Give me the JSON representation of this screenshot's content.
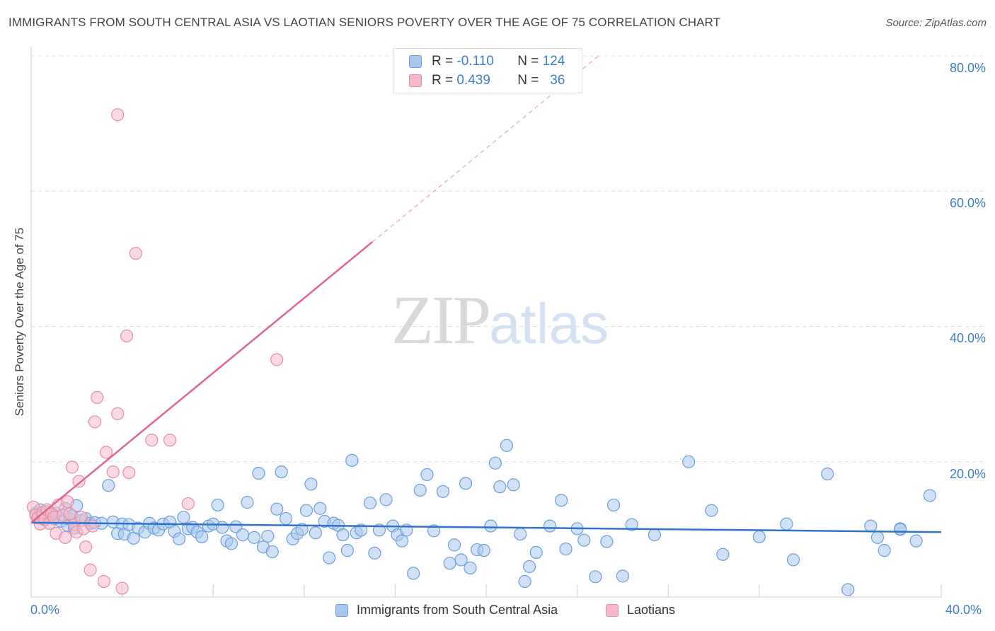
{
  "title": "IMMIGRANTS FROM SOUTH CENTRAL ASIA VS LAOTIAN SENIORS POVERTY OVER THE AGE OF 75 CORRELATION CHART",
  "source": "Source: ZipAtlas.com",
  "watermark": {
    "zip": "ZIP",
    "atlas": "atlas"
  },
  "legend": {
    "rows": [
      {
        "r_label": "R =",
        "r_value": "-0.110",
        "n_label": "N =",
        "n_value": "124",
        "color": "#a9c8ee"
      },
      {
        "r_label": "R =",
        "r_value": "0.439",
        "n_label": "N =",
        "n_value": "36",
        "color": "#f6b9ca"
      }
    ]
  },
  "colors": {
    "blue_fill": "#a9c8ee",
    "blue_stroke": "#6b9fdb",
    "blue_line": "#2f73cf",
    "pink_fill": "#f6b9ca",
    "pink_stroke": "#e98aa6",
    "pink_line": "#e0648c",
    "grid": "#dddddd",
    "tick_text": "#3d7ccc"
  },
  "chart_data": {
    "type": "scatter",
    "title": "IMMIGRANTS FROM SOUTH CENTRAL ASIA VS LAOTIAN SENIORS POVERTY OVER THE AGE OF 75 CORRELATION CHART",
    "xlabel": "",
    "ylabel": "Seniors Poverty Over the Age of 75",
    "xlim": [
      0,
      40
    ],
    "ylim": [
      0,
      80
    ],
    "x_ticks": [
      "0.0%",
      "40.0%"
    ],
    "y_ticks": [
      "20.0%",
      "40.0%",
      "60.0%",
      "80.0%"
    ],
    "grid": true,
    "legend_position": "top-center",
    "series": [
      {
        "name": "Immigrants from South Central Asia",
        "color": "#a9c8ee",
        "trend": {
          "x": [
            0,
            40
          ],
          "y": [
            11.0,
            9.6
          ],
          "r": -0.11,
          "n": 124
        },
        "points": [
          [
            0.2,
            12.4
          ],
          [
            0.3,
            11.8
          ],
          [
            0.4,
            12.9
          ],
          [
            0.5,
            12.1
          ],
          [
            0.6,
            11.4
          ],
          [
            0.7,
            12.6
          ],
          [
            0.8,
            11.9
          ],
          [
            0.9,
            12.2
          ],
          [
            1.0,
            11.6
          ],
          [
            1.1,
            12.4
          ],
          [
            1.3,
            11.2
          ],
          [
            1.5,
            13.1
          ],
          [
            1.6,
            10.6
          ],
          [
            1.7,
            11.5
          ],
          [
            1.8,
            12.0
          ],
          [
            1.9,
            10.2
          ],
          [
            2.0,
            13.5
          ],
          [
            2.2,
            11.3
          ],
          [
            2.4,
            11.6
          ],
          [
            2.6,
            10.9
          ],
          [
            2.8,
            11.0
          ],
          [
            3.1,
            10.9
          ],
          [
            3.4,
            16.5
          ],
          [
            3.6,
            11.1
          ],
          [
            3.8,
            9.4
          ],
          [
            4.0,
            10.8
          ],
          [
            4.1,
            9.3
          ],
          [
            4.3,
            10.7
          ],
          [
            4.5,
            8.7
          ],
          [
            4.7,
            10.2
          ],
          [
            5.0,
            9.6
          ],
          [
            5.2,
            10.9
          ],
          [
            5.4,
            10.2
          ],
          [
            5.6,
            9.9
          ],
          [
            5.8,
            10.8
          ],
          [
            6.1,
            11.1
          ],
          [
            6.3,
            9.7
          ],
          [
            6.5,
            8.6
          ],
          [
            6.7,
            11.8
          ],
          [
            6.9,
            10.1
          ],
          [
            7.1,
            10.3
          ],
          [
            7.3,
            9.6
          ],
          [
            7.5,
            8.9
          ],
          [
            7.8,
            10.5
          ],
          [
            8.0,
            10.8
          ],
          [
            8.2,
            13.6
          ],
          [
            8.4,
            10.3
          ],
          [
            8.6,
            8.3
          ],
          [
            8.8,
            7.9
          ],
          [
            9.0,
            10.4
          ],
          [
            9.3,
            9.2
          ],
          [
            9.5,
            14.0
          ],
          [
            9.8,
            8.8
          ],
          [
            10.0,
            18.3
          ],
          [
            10.2,
            7.4
          ],
          [
            10.4,
            9.0
          ],
          [
            10.6,
            6.7
          ],
          [
            10.8,
            13.0
          ],
          [
            11.0,
            18.5
          ],
          [
            11.2,
            11.6
          ],
          [
            11.5,
            8.6
          ],
          [
            11.7,
            9.4
          ],
          [
            11.9,
            10.0
          ],
          [
            12.1,
            12.8
          ],
          [
            12.3,
            16.7
          ],
          [
            12.5,
            9.5
          ],
          [
            12.7,
            13.1
          ],
          [
            12.9,
            11.2
          ],
          [
            13.1,
            5.8
          ],
          [
            13.3,
            10.9
          ],
          [
            13.5,
            10.6
          ],
          [
            13.7,
            9.2
          ],
          [
            13.9,
            6.9
          ],
          [
            14.1,
            20.2
          ],
          [
            14.3,
            9.5
          ],
          [
            14.5,
            9.9
          ],
          [
            14.9,
            13.9
          ],
          [
            15.1,
            6.5
          ],
          [
            15.3,
            9.9
          ],
          [
            15.6,
            14.4
          ],
          [
            15.9,
            10.5
          ],
          [
            16.1,
            9.2
          ],
          [
            16.3,
            8.3
          ],
          [
            16.5,
            9.9
          ],
          [
            16.8,
            3.5
          ],
          [
            17.1,
            15.8
          ],
          [
            17.4,
            18.1
          ],
          [
            17.7,
            9.8
          ],
          [
            18.1,
            15.6
          ],
          [
            18.4,
            5.0
          ],
          [
            18.6,
            7.7
          ],
          [
            18.9,
            5.5
          ],
          [
            19.1,
            16.8
          ],
          [
            19.3,
            4.3
          ],
          [
            19.6,
            7.0
          ],
          [
            19.9,
            6.9
          ],
          [
            20.2,
            10.5
          ],
          [
            20.4,
            19.8
          ],
          [
            20.6,
            16.3
          ],
          [
            20.9,
            22.4
          ],
          [
            21.2,
            16.6
          ],
          [
            21.5,
            9.3
          ],
          [
            21.7,
            2.3
          ],
          [
            21.9,
            4.5
          ],
          [
            22.2,
            6.6
          ],
          [
            22.8,
            10.5
          ],
          [
            23.3,
            14.3
          ],
          [
            23.5,
            7.1
          ],
          [
            24.0,
            10.1
          ],
          [
            24.3,
            8.4
          ],
          [
            24.8,
            3.0
          ],
          [
            25.3,
            8.2
          ],
          [
            25.6,
            13.6
          ],
          [
            26.0,
            3.1
          ],
          [
            26.4,
            10.7
          ],
          [
            27.4,
            9.2
          ],
          [
            28.9,
            20.0
          ],
          [
            29.9,
            12.8
          ],
          [
            30.4,
            6.3
          ],
          [
            32.0,
            8.9
          ],
          [
            33.2,
            10.8
          ],
          [
            33.5,
            5.5
          ],
          [
            35.0,
            18.2
          ],
          [
            35.9,
            1.1
          ]
        ]
      },
      {
        "name": "Laotians",
        "color": "#f6b9ca",
        "trend": {
          "x": [
            0,
            15
          ],
          "y": [
            11.0,
            52.5
          ],
          "r": 0.439,
          "n": 36
        },
        "points": [
          [
            0.1,
            13.3
          ],
          [
            0.2,
            12.1
          ],
          [
            0.3,
            11.7
          ],
          [
            0.4,
            10.8
          ],
          [
            0.5,
            12.5
          ],
          [
            0.6,
            11.5
          ],
          [
            0.7,
            12.9
          ],
          [
            0.8,
            10.9
          ],
          [
            0.9,
            12.3
          ],
          [
            1.0,
            11.8
          ],
          [
            1.1,
            9.4
          ],
          [
            1.2,
            13.6
          ],
          [
            1.4,
            12.1
          ],
          [
            1.5,
            8.8
          ],
          [
            1.6,
            14.1
          ],
          [
            1.7,
            12.3
          ],
          [
            1.8,
            19.2
          ],
          [
            1.9,
            10.7
          ],
          [
            2.0,
            9.6
          ],
          [
            2.1,
            17.1
          ],
          [
            2.2,
            11.8
          ],
          [
            2.3,
            10.1
          ],
          [
            2.4,
            7.4
          ],
          [
            2.6,
            4.0
          ],
          [
            2.7,
            10.5
          ],
          [
            2.8,
            25.9
          ],
          [
            2.9,
            29.5
          ],
          [
            3.2,
            2.3
          ],
          [
            3.3,
            21.4
          ],
          [
            3.6,
            18.5
          ],
          [
            3.8,
            27.1
          ],
          [
            3.8,
            71.3
          ],
          [
            4.0,
            1.3
          ],
          [
            4.2,
            38.6
          ],
          [
            4.3,
            18.4
          ],
          [
            4.6,
            50.8
          ]
        ]
      }
    ]
  },
  "extra_points": {
    "blue": [
      [
        36.9,
        10.5
      ],
      [
        37.2,
        8.8
      ],
      [
        37.5,
        6.9
      ],
      [
        38.2,
        10.1
      ],
      [
        38.9,
        8.3
      ],
      [
        38.2,
        10.0
      ],
      [
        39.5,
        15.0
      ]
    ],
    "pink": [
      [
        5.3,
        23.2
      ],
      [
        6.1,
        23.2
      ],
      [
        6.9,
        13.8
      ],
      [
        10.8,
        35.1
      ]
    ]
  },
  "bottom_legend": [
    "Immigrants from South Central Asia",
    "Laotians"
  ]
}
